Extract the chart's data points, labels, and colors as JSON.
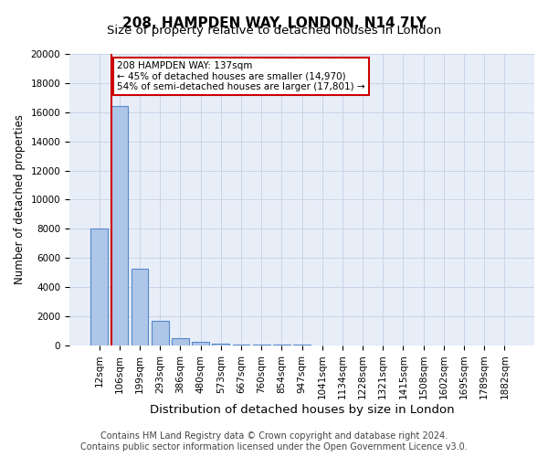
{
  "title": "208, HAMPDEN WAY, LONDON, N14 7LY",
  "subtitle": "Size of property relative to detached houses in London",
  "xlabel": "Distribution of detached houses by size in London",
  "ylabel": "Number of detached properties",
  "categories": [
    "12sqm",
    "106sqm",
    "199sqm",
    "293sqm",
    "386sqm",
    "480sqm",
    "573sqm",
    "667sqm",
    "760sqm",
    "854sqm",
    "947sqm",
    "1041sqm",
    "1134sqm",
    "1228sqm",
    "1321sqm",
    "1415sqm",
    "1508sqm",
    "1602sqm",
    "1695sqm",
    "1789sqm",
    "1882sqm"
  ],
  "values": [
    8050,
    16400,
    5250,
    1700,
    520,
    280,
    120,
    80,
    60,
    40,
    30,
    20,
    15,
    12,
    10,
    8,
    6,
    5,
    4,
    3,
    2
  ],
  "bar_color": "#aec6e8",
  "bar_edge_color": "#5588cc",
  "red_line_color": "#cc0000",
  "red_line_x": 0.62,
  "annotation_line1": "208 HAMPDEN WAY: 137sqm",
  "annotation_line2": "← 45% of detached houses are smaller (14,970)",
  "annotation_line3": "54% of semi-detached houses are larger (17,801) →",
  "annotation_box_color": "#ffffff",
  "annotation_border_color": "#cc0000",
  "ylim": [
    0,
    20000
  ],
  "yticks": [
    0,
    2000,
    4000,
    6000,
    8000,
    10000,
    12000,
    14000,
    16000,
    18000,
    20000
  ],
  "grid_color": "#c8d4e8",
  "bg_color": "#e8eef8",
  "footer": "Contains HM Land Registry data © Crown copyright and database right 2024.\nContains public sector information licensed under the Open Government Licence v3.0.",
  "title_fontsize": 11,
  "subtitle_fontsize": 9.5,
  "xlabel_fontsize": 9.5,
  "ylabel_fontsize": 8.5,
  "tick_fontsize": 7.5,
  "footer_fontsize": 7.0
}
